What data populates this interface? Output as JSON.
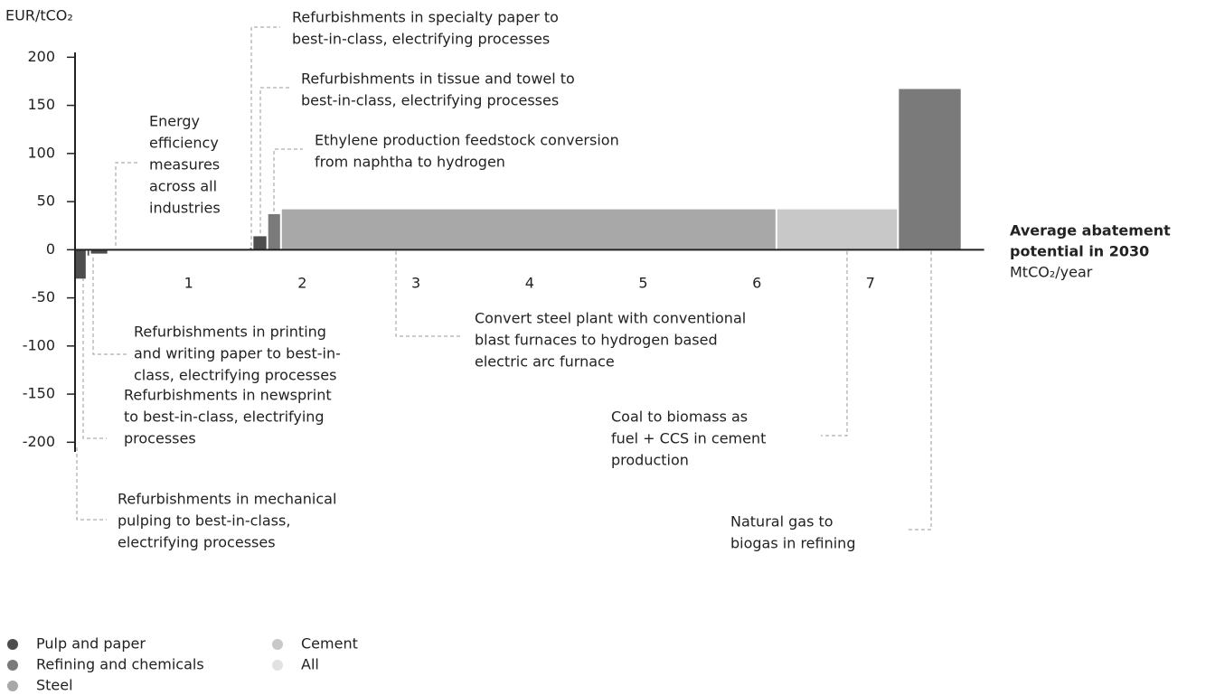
{
  "chart_data": {
    "type": "bar",
    "ylabel": "EUR/tCO₂",
    "xlabel": [
      "Average abatement",
      "potential in 2030"
    ],
    "xunit": "MtCO₂/year",
    "xlim": [
      0,
      8
    ],
    "xticks": [
      1,
      2,
      3,
      4,
      5,
      6,
      7
    ],
    "ylim": [
      -210,
      205
    ],
    "yticks": [
      -200,
      -150,
      -100,
      -50,
      0,
      50,
      100,
      150,
      200
    ],
    "legend": [
      {
        "name": "Pulp and paper",
        "color": "#4d4d4d"
      },
      {
        "name": "Refining and chemicals",
        "color": "#7a7a7a"
      },
      {
        "name": "Steel",
        "color": "#a8a8a8"
      },
      {
        "name": "Cement",
        "color": "#c8c8c8"
      },
      {
        "name": "All",
        "color": "#e2e2e2"
      }
    ],
    "bars": [
      {
        "sector": "Pulp and paper",
        "width": 0.11,
        "value": -30,
        "label": [
          "Refurbishments in mechanical",
          "pulping to best-in-class,",
          "electrifying processes"
        ]
      },
      {
        "sector": "Pulp and paper",
        "width": 0.03,
        "value": -6,
        "label": [
          "Refurbishments in newsprint",
          "to best-in-class, electrifying",
          "processes"
        ]
      },
      {
        "sector": "Pulp and paper",
        "width": 0.16,
        "value": -4,
        "label": [
          "Refurbishments in printing",
          "and writing paper to best-in-",
          "class, electrifying processes"
        ]
      },
      {
        "sector": "All",
        "width": 1.24,
        "value": -1,
        "label": [
          "Energy",
          "efficiency",
          "measures",
          "across all",
          "industries"
        ]
      },
      {
        "sector": "Pulp and paper",
        "width": 0.03,
        "value": 2,
        "label": [
          "Refurbishments in specialty paper to",
          "best-in-class, electrifying processes"
        ]
      },
      {
        "sector": "Pulp and paper",
        "width": 0.13,
        "value": 14,
        "label": [
          "Refurbishments in tissue and towel to",
          "best-in-class, electrifying processes"
        ]
      },
      {
        "sector": "Refining and chemicals",
        "width": 0.12,
        "value": 37,
        "label": [
          "Ethylene production feedstock conversion",
          "from naphtha to hydrogen"
        ]
      },
      {
        "sector": "Steel",
        "width": 4.36,
        "value": 42,
        "label": [
          "Convert steel plant with conventional",
          "blast furnaces to hydrogen based",
          "electric arc furnace"
        ]
      },
      {
        "sector": "Cement",
        "width": 1.07,
        "value": 42,
        "label": [
          "Coal to biomass as",
          "fuel + CCS in cement",
          "production"
        ]
      },
      {
        "sector": "Refining and chemicals",
        "width": 0.56,
        "value": 167,
        "label": [
          "Natural gas to",
          "biogas in refining"
        ]
      }
    ]
  }
}
